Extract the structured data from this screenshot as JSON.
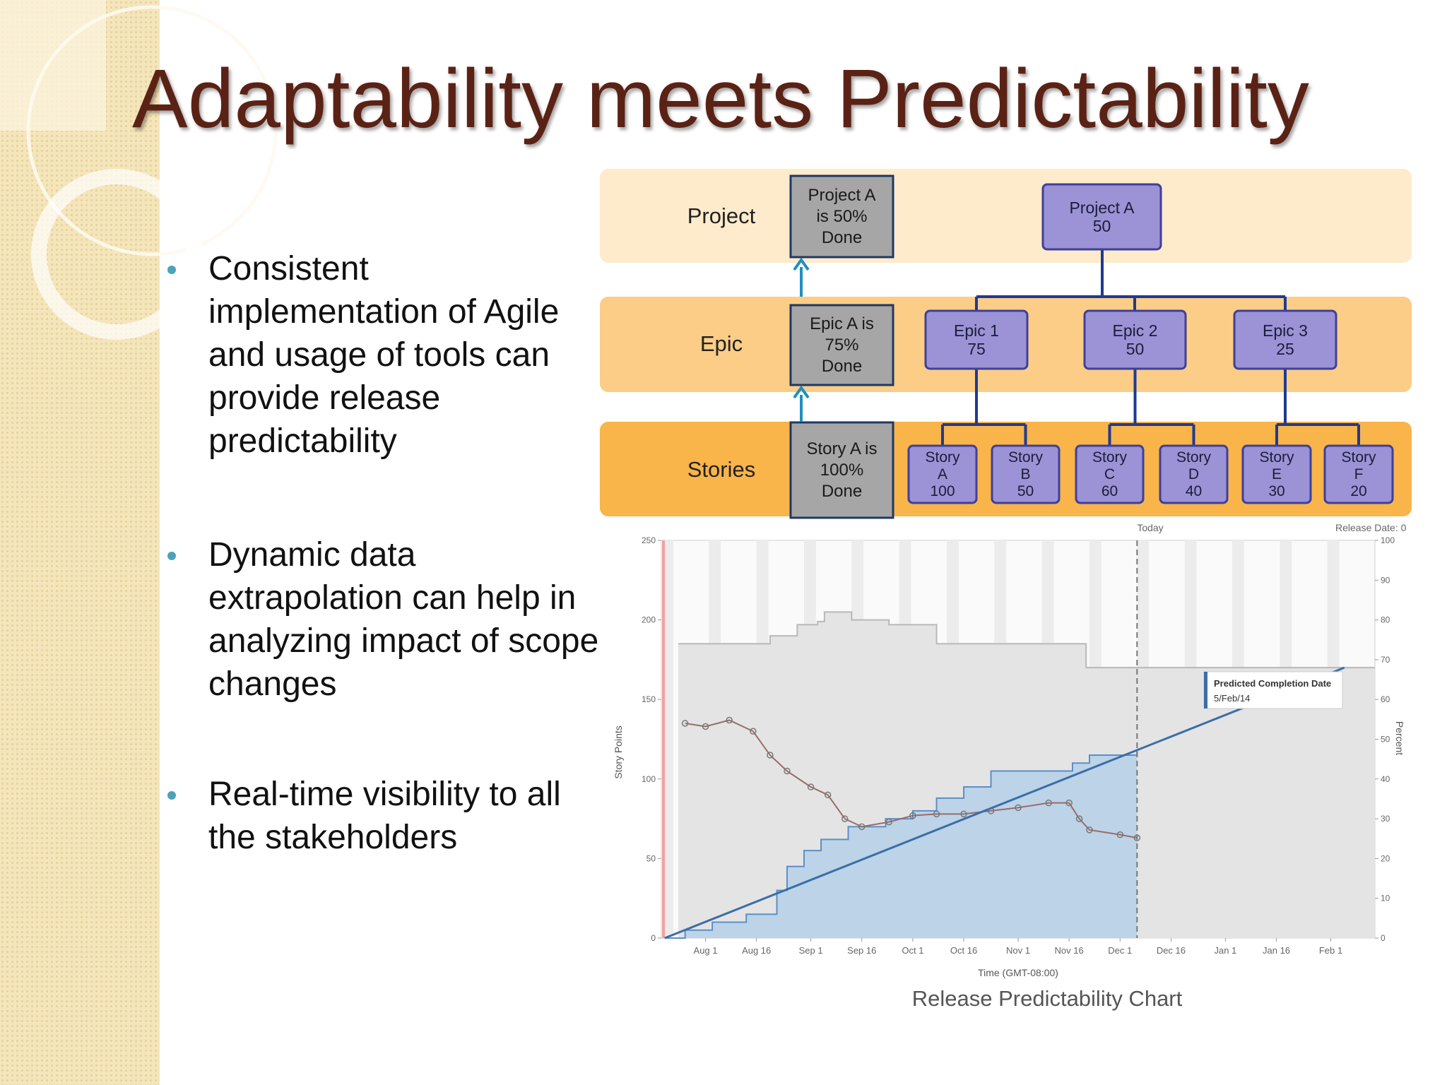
{
  "title": "Adaptability meets Predictability",
  "bullets": [
    "Consistent implementation of Agile and usage of tools can provide release predictability",
    "Dynamic data extrapolation can help in analyzing impact of scope changes",
    "Real-time visibility to all the stakeholders"
  ],
  "hierarchy": {
    "rows": [
      {
        "label": "Project",
        "status": [
          "Project A",
          "is 50%",
          "Done"
        ]
      },
      {
        "label": "Epic",
        "status": [
          "Epic A is",
          "75%",
          "Done"
        ]
      },
      {
        "label": "Stories",
        "status": [
          "Story A is",
          "100%",
          "Done"
        ]
      }
    ],
    "project": {
      "label": "Project A",
      "value": 50
    },
    "epics": [
      {
        "label": "Epic 1",
        "value": 75
      },
      {
        "label": "Epic 2",
        "value": 50
      },
      {
        "label": "Epic 3",
        "value": 25
      }
    ],
    "stories": [
      {
        "label": "Story A",
        "value": 100
      },
      {
        "label": "Story B",
        "value": 50
      },
      {
        "label": "Story C",
        "value": 60
      },
      {
        "label": "Story D",
        "value": 40
      },
      {
        "label": "Story E",
        "value": 30
      },
      {
        "label": "Story F",
        "value": 20
      }
    ]
  },
  "chart_data": {
    "type": "area",
    "step": true,
    "caption": "Release Predictability Chart",
    "x_label": "Time (GMT-08:00)",
    "y_label": "Story Points",
    "y2_label": "Percent",
    "xlim": [
      "2013-07-19",
      "2014-02-14"
    ],
    "xticks": [
      {
        "value": "2013-08-01",
        "label": "Aug 1"
      },
      {
        "value": "2013-08-16",
        "label": "Aug 16"
      },
      {
        "value": "2013-09-01",
        "label": "Sep 1"
      },
      {
        "value": "2013-09-16",
        "label": "Sep 16"
      },
      {
        "value": "2013-10-01",
        "label": "Oct 1"
      },
      {
        "value": "2013-10-16",
        "label": "Oct 16"
      },
      {
        "value": "2013-11-01",
        "label": "Nov 1"
      },
      {
        "value": "2013-11-16",
        "label": "Nov 16"
      },
      {
        "value": "2013-12-01",
        "label": "Dec 1"
      },
      {
        "value": "2013-12-16",
        "label": "Dec 16"
      },
      {
        "value": "2014-01-01",
        "label": "Jan 1"
      },
      {
        "value": "2014-01-16",
        "label": "Jan 16"
      },
      {
        "value": "2014-02-01",
        "label": "Feb 1"
      }
    ],
    "ylim": [
      0,
      250
    ],
    "yticks": [
      0,
      50,
      100,
      150,
      200,
      250
    ],
    "y2lim": [
      0,
      100
    ],
    "y2ticks": [
      0,
      10,
      20,
      30,
      40,
      50,
      60,
      70,
      80,
      90,
      100
    ],
    "today": {
      "x": "2013-12-06",
      "label": "Today"
    },
    "release_label": "Release Date: 0",
    "annotation": {
      "title": "Predicted Completion Date",
      "text": "5/Feb/14"
    },
    "series": [
      {
        "type": "area",
        "color": "#e4e4e4",
        "x": [
          "2013-07-24",
          "2013-08-20",
          "2013-08-28",
          "2013-09-03",
          "2013-09-05",
          "2013-09-13",
          "2013-09-24",
          "2013-10-08",
          "2013-11-21",
          "2014-02-14"
        ],
        "values": [
          185,
          190,
          197,
          199,
          205,
          200,
          197,
          185,
          170,
          170
        ]
      },
      {
        "type": "area",
        "color": "#bcd3e8",
        "x": [
          "2013-07-20",
          "2013-07-26",
          "2013-08-03",
          "2013-08-13",
          "2013-08-22",
          "2013-08-25",
          "2013-08-30",
          "2013-09-04",
          "2013-09-12",
          "2013-09-23",
          "2013-10-01",
          "2013-10-08",
          "2013-10-16",
          "2013-10-24",
          "2013-11-17",
          "2013-11-22",
          "2013-12-06"
        ],
        "values": [
          0,
          5,
          10,
          15,
          30,
          45,
          55,
          62,
          70,
          75,
          80,
          88,
          95,
          105,
          110,
          115,
          118
        ]
      },
      {
        "type": "line",
        "color": "#9b6b6b",
        "x": [
          "2013-07-26",
          "2013-08-01",
          "2013-08-08",
          "2013-08-15",
          "2013-08-20",
          "2013-08-25",
          "2013-09-01",
          "2013-09-06",
          "2013-09-11",
          "2013-09-16",
          "2013-09-24",
          "2013-10-01",
          "2013-10-08",
          "2013-10-16",
          "2013-10-24",
          "2013-11-01",
          "2013-11-10",
          "2013-11-16",
          "2013-11-19",
          "2013-11-22",
          "2013-12-01",
          "2013-12-06"
        ],
        "values": [
          135,
          133,
          137,
          130,
          115,
          105,
          95,
          90,
          75,
          70,
          73,
          77,
          78,
          78,
          80,
          82,
          85,
          85,
          75,
          68,
          65,
          63
        ]
      },
      {
        "type": "line",
        "color": "#3b6ea8",
        "x": [
          "2013-07-20",
          "2014-02-05"
        ],
        "values": [
          0,
          170
        ]
      }
    ]
  }
}
